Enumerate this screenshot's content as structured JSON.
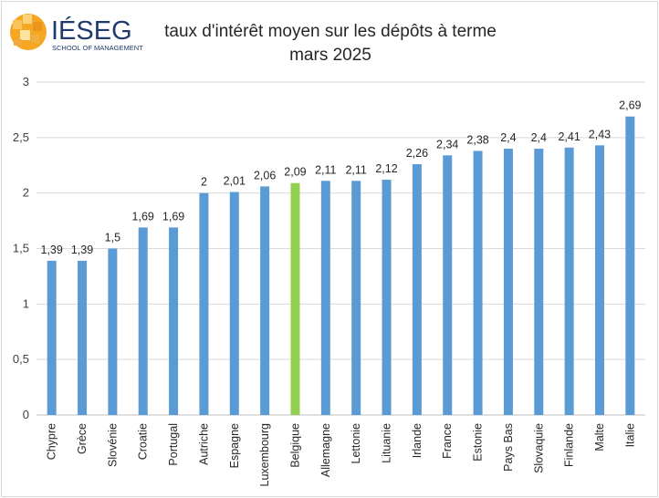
{
  "logo": {
    "brand": "IÉSEG",
    "tagline": "SCHOOL OF MANAGEMENT"
  },
  "chart_data": {
    "type": "bar",
    "title": "taux d'intérêt moyen sur les dépôts à terme",
    "subtitle": "mars 2025",
    "xlabel": "",
    "ylabel": "",
    "ylim": [
      0,
      3
    ],
    "yticks": [
      "0",
      "0,5",
      "1",
      "1,5",
      "2",
      "2,5",
      "3"
    ],
    "grid": true,
    "categories": [
      "Chypre",
      "Grèce",
      "Slovénie",
      "Croatie",
      "Portugal",
      "Autriche",
      "Espagne",
      "Luxembourg",
      "Belgique",
      "Allemagne",
      "Lettonie",
      "Lituanie",
      "Irlande",
      "France",
      "Estonie",
      "Pays Bas",
      "Slovaquie",
      "Finlande",
      "Malte",
      "Italie"
    ],
    "values": [
      1.39,
      1.39,
      1.5,
      1.69,
      1.69,
      2,
      2.01,
      2.06,
      2.09,
      2.11,
      2.11,
      2.12,
      2.26,
      2.34,
      2.38,
      2.4,
      2.4,
      2.41,
      2.43,
      2.69
    ],
    "value_labels": [
      "1,39",
      "1,39",
      "1,5",
      "1,69",
      "1,69",
      "2",
      "2,01",
      "2,06",
      "2,09",
      "2,11",
      "2,11",
      "2,12",
      "2,26",
      "2,34",
      "2,38",
      "2,4",
      "2,4",
      "2,41",
      "2,43",
      "2,69"
    ],
    "bar_color": "#5b9bd5",
    "highlight": {
      "category": "Belgique",
      "color": "#92d050"
    }
  }
}
